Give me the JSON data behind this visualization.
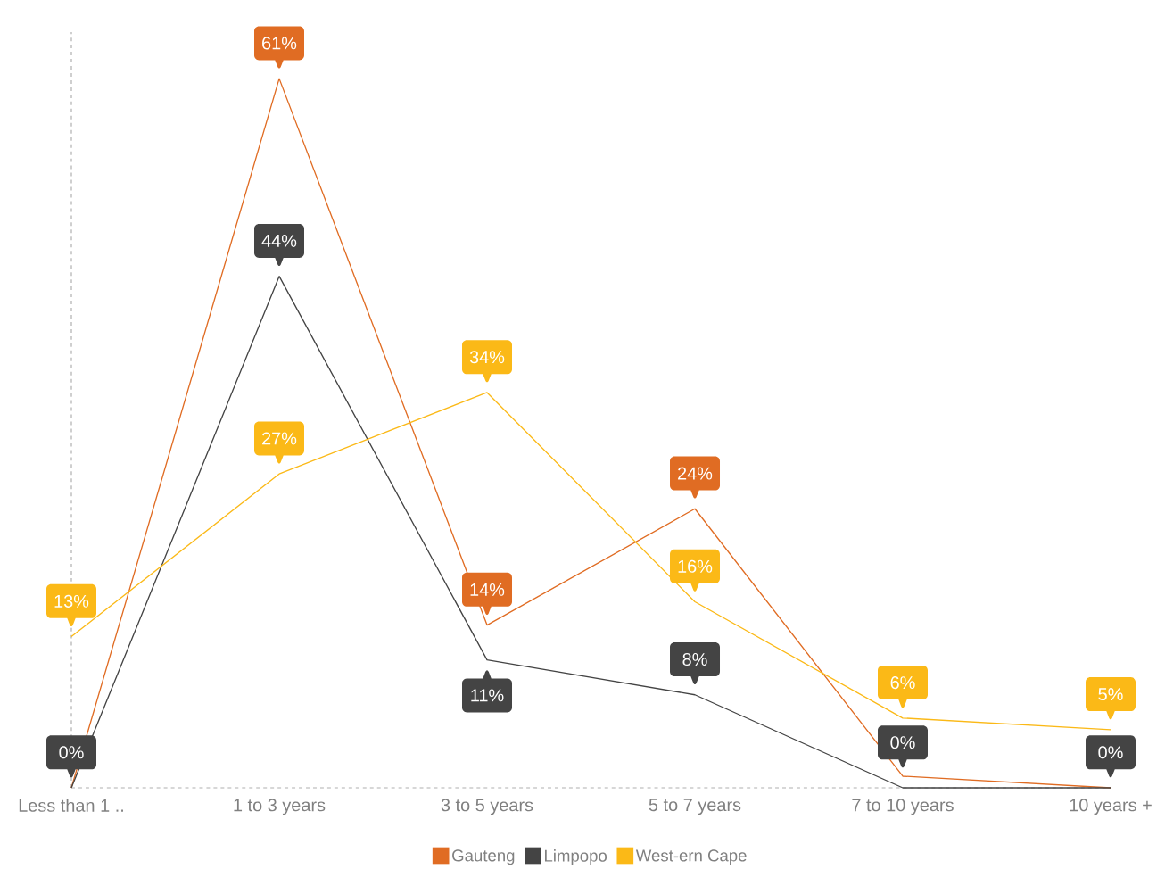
{
  "chart_data": {
    "type": "line",
    "categories": [
      "Less than 1 ..",
      "1 to 3 years",
      "3 to 5 years",
      "5 to 7 years",
      "7 to 10 years",
      "10 years +"
    ],
    "series": [
      {
        "name": "Gauteng",
        "color": "#e06c23",
        "values": [
          0,
          61,
          14,
          24,
          1,
          0
        ],
        "value_labels": [
          null,
          "61%",
          "14%",
          "24%",
          null,
          null
        ]
      },
      {
        "name": "Limpopo",
        "color": "#444444",
        "values": [
          0,
          44,
          11,
          8,
          0,
          0
        ],
        "value_labels": [
          "0%",
          "44%",
          "11%",
          "8%",
          "0%",
          "0%"
        ]
      },
      {
        "name": "West-ern Cape",
        "color": "#fbb917",
        "values": [
          13,
          27,
          34,
          16,
          6,
          5
        ],
        "value_labels": [
          "13%",
          "27%",
          "34%",
          "16%",
          "6%",
          "5%"
        ]
      }
    ],
    "ylim": [
      0,
      65
    ],
    "tick_labels": "x",
    "legend": "bottom",
    "marker": "none",
    "line_style": "solid"
  }
}
